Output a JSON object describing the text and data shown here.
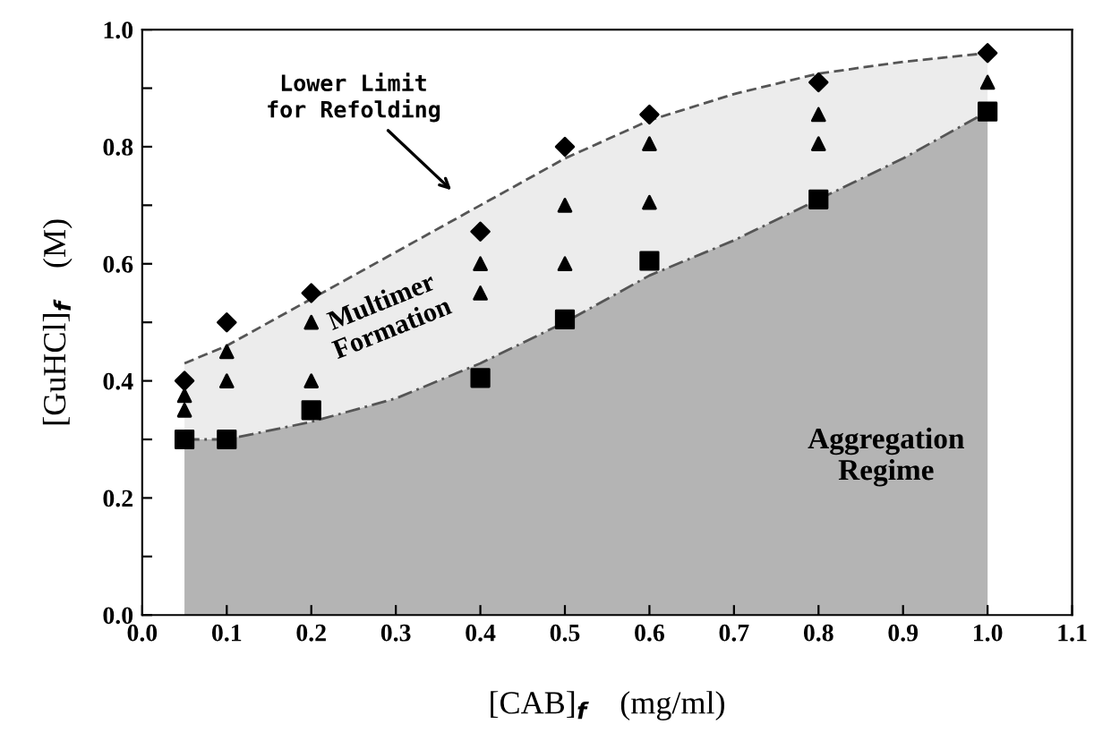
{
  "chart_data": {
    "type": "scatter",
    "xlabel": "[CAB]$_{f}$    (mg/ml)",
    "ylabel": "[GuHCl]$_{f}$    (M)",
    "xlim": [
      0.0,
      1.1
    ],
    "ylim": [
      0.0,
      1.0
    ],
    "xticks": [
      {
        "value": 0.0,
        "label": "0.0"
      },
      0.1,
      0.2,
      0.3,
      0.4,
      0.5,
      0.6,
      0.7,
      0.8,
      0.9,
      {
        "value": 1.0,
        "label": "1.0"
      },
      1.1
    ],
    "yticks": [
      {
        "value": 0.0,
        "label": "0.0"
      },
      {
        "value": 0.1,
        "label": null
      },
      0.2,
      {
        "value": 0.3,
        "label": null
      },
      0.4,
      {
        "value": 0.5,
        "label": null
      },
      0.6,
      {
        "value": 0.7,
        "label": null
      },
      0.8,
      {
        "value": 0.9,
        "label": null
      },
      {
        "value": 1.0,
        "label": "1.0"
      }
    ],
    "grid": false,
    "legend": false,
    "series": [
      {
        "type": "area",
        "color": "#ececec",
        "line_style": "dashed",
        "x": [
          0.05,
          0.1,
          0.2,
          0.3,
          0.4,
          0.5,
          0.6,
          0.7,
          0.8,
          0.9,
          1.0
        ],
        "values": [
          0.43,
          0.46,
          0.54,
          0.62,
          0.7,
          0.78,
          0.845,
          0.89,
          0.925,
          0.945,
          0.96
        ]
      },
      {
        "type": "area",
        "color": "#b4b4b4",
        "line_style": "dashdot",
        "x": [
          0.05,
          0.1,
          0.2,
          0.3,
          0.4,
          0.5,
          0.6,
          0.7,
          0.8,
          0.9,
          1.0
        ],
        "values": [
          0.3,
          0.3,
          0.33,
          0.37,
          0.43,
          0.5,
          0.58,
          0.64,
          0.71,
          0.78,
          0.86
        ]
      },
      {
        "color": "#000000",
        "marker": "diamond",
        "x": [
          0.05,
          0.1,
          0.2,
          0.4,
          0.5,
          0.6,
          0.8,
          1.0
        ],
        "values": [
          0.4,
          0.5,
          0.55,
          0.655,
          0.8,
          0.855,
          0.91,
          0.96
        ]
      },
      {
        "color": "#000000",
        "marker": "triangle",
        "x": [
          0.05,
          0.05,
          0.1,
          0.1,
          0.2,
          0.2,
          0.4,
          0.4,
          0.5,
          0.5,
          0.6,
          0.6,
          0.8,
          0.8,
          1.0
        ],
        "values": [
          0.375,
          0.35,
          0.45,
          0.4,
          0.5,
          0.4,
          0.6,
          0.55,
          0.7,
          0.6,
          0.805,
          0.705,
          0.855,
          0.805,
          0.91
        ]
      },
      {
        "color": "#000000",
        "marker": "square",
        "x": [
          0.05,
          0.1,
          0.2,
          0.4,
          0.5,
          0.6,
          0.8,
          1.0
        ],
        "values": [
          0.3,
          0.3,
          0.35,
          0.405,
          0.505,
          0.605,
          0.71,
          0.86
        ]
      }
    ],
    "annotations": [
      "Lower Limit\nfor Refolding",
      "Multimer\nFormation",
      "Aggregation\nRegime"
    ]
  }
}
